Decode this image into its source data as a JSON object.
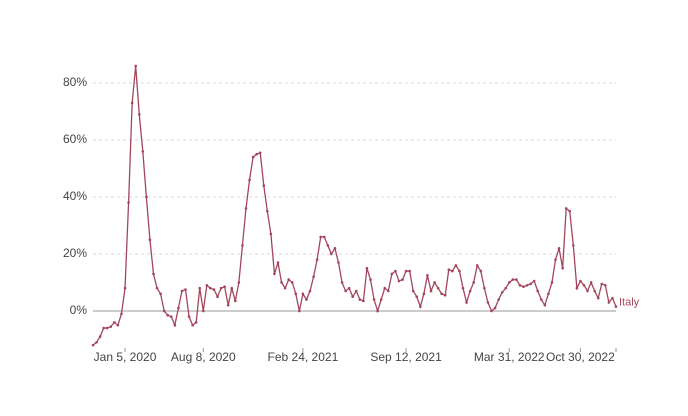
{
  "chart_data": {
    "type": "line",
    "categories": [
      null,
      null,
      null,
      null,
      null,
      null,
      null,
      null,
      null,
      "Jan 5, 2020",
      null,
      null,
      null,
      null,
      null,
      null,
      null,
      null,
      null,
      null,
      null,
      null,
      null,
      null,
      null,
      null,
      null,
      null,
      null,
      null,
      null,
      "Aug 8, 2020",
      null,
      null,
      null,
      null,
      null,
      null,
      null,
      null,
      null,
      null,
      null,
      null,
      null,
      null,
      null,
      null,
      null,
      null,
      null,
      null,
      null,
      null,
      null,
      null,
      null,
      null,
      null,
      "Feb 24, 2021",
      null,
      null,
      null,
      null,
      null,
      null,
      null,
      null,
      null,
      null,
      null,
      null,
      null,
      null,
      null,
      null,
      null,
      null,
      null,
      null,
      null,
      null,
      null,
      null,
      null,
      null,
      null,
      null,
      "Sep 12, 2021",
      null,
      null,
      null,
      null,
      null,
      null,
      null,
      null,
      null,
      null,
      null,
      null,
      null,
      null,
      null,
      null,
      null,
      null,
      null,
      null,
      null,
      null,
      null,
      null,
      null,
      null,
      null,
      null,
      "Mar 31, 2022",
      null,
      null,
      null,
      null,
      null,
      null,
      null,
      null,
      null,
      null,
      null,
      null,
      null,
      null,
      null,
      null,
      null,
      null,
      null,
      "Oct 30, 2022",
      null,
      null,
      null,
      null,
      null,
      null,
      null,
      null,
      null,
      null
    ],
    "series": [
      {
        "name": "Italy",
        "color": "#a3455d",
        "values": [
          -12,
          -11,
          -9,
          -6,
          -6,
          -5.5,
          -4,
          -5,
          -1,
          8,
          38,
          73,
          86,
          69,
          56,
          40,
          25,
          13,
          8,
          6,
          0,
          -1.5,
          -2,
          -5,
          1,
          7,
          7.5,
          -2,
          -5,
          -4,
          8,
          0,
          9,
          8,
          7.5,
          5,
          8,
          8.5,
          2,
          8,
          3.5,
          10,
          23,
          36,
          46,
          54,
          55,
          55.5,
          44,
          35,
          27,
          13,
          17,
          10,
          8,
          11,
          10,
          6,
          0,
          6,
          4,
          7,
          12,
          18,
          26,
          26,
          23,
          20,
          22,
          17,
          10,
          7,
          8,
          5,
          7,
          4,
          3.5,
          15,
          11,
          4,
          0,
          4,
          8,
          7,
          13,
          14,
          10.5,
          11,
          14,
          14,
          7,
          5,
          1.5,
          6,
          12.5,
          7,
          10,
          8,
          6,
          5.5,
          14.5,
          14,
          16,
          14,
          8,
          3,
          7,
          10,
          16,
          14,
          8,
          3,
          0,
          1,
          4,
          6.5,
          8,
          10,
          11,
          11,
          9,
          8.5,
          9,
          9.5,
          10.5,
          7,
          4,
          2,
          6,
          10,
          18,
          22,
          15,
          36,
          35,
          23,
          8,
          10.5,
          9,
          7,
          10,
          7,
          4.5,
          9.5,
          9,
          3,
          4.5,
          1.5
        ]
      }
    ],
    "ylim": [
      -13,
      90
    ],
    "yticks": [
      {
        "value": 0,
        "label": "0%"
      },
      {
        "value": 20,
        "label": "20%"
      },
      {
        "value": 40,
        "label": "40%"
      },
      {
        "value": 60,
        "label": "60%"
      },
      {
        "value": 80,
        "label": "80%"
      }
    ],
    "grid": true
  }
}
